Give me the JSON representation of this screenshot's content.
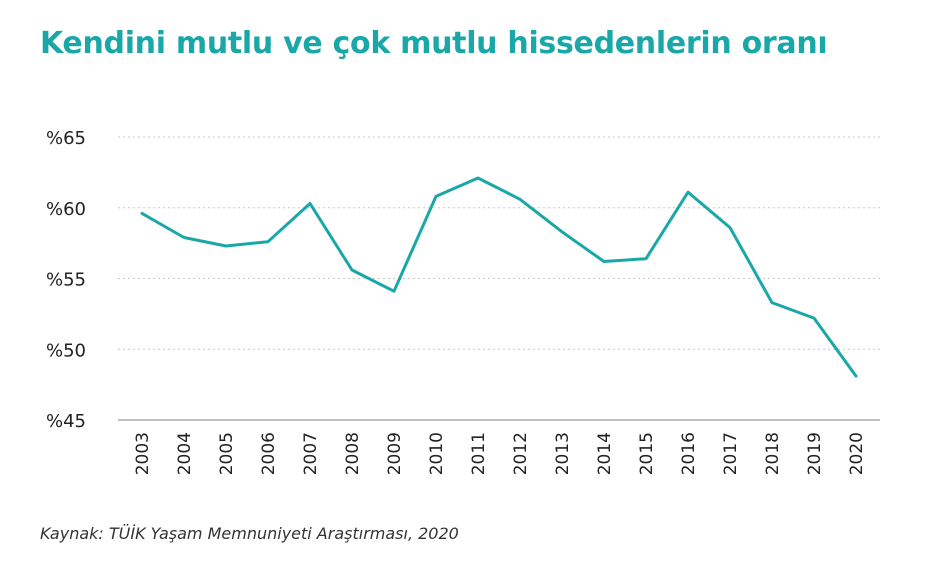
{
  "chart_data": {
    "type": "line",
    "title": "Kendini mutlu ve çok mutlu hissedenlerin oranı",
    "x": [
      "2003",
      "2004",
      "2005",
      "2006",
      "2007",
      "2008",
      "2009",
      "2010",
      "2011",
      "2012",
      "2013",
      "2014",
      "2015",
      "2016",
      "2017",
      "2018",
      "2019",
      "2020"
    ],
    "series": [
      {
        "values": [
          59.6,
          57.9,
          57.3,
          57.6,
          60.3,
          55.6,
          54.1,
          60.8,
          62.1,
          60.6,
          58.3,
          56.2,
          56.4,
          61.1,
          58.6,
          53.3,
          52.2,
          48.1
        ]
      }
    ],
    "yticks": [
      "%65",
      "%60",
      "%55",
      "%50",
      "%45"
    ],
    "ytick_values": [
      65,
      60,
      55,
      50,
      45
    ],
    "ylim": [
      45,
      65
    ],
    "xlabel": "",
    "ylabel": "",
    "grid": true,
    "line_color": "#1aa7a8",
    "grid_color": "#c8c8c8",
    "source": "Kaynak: TÜİK Yaşam Memnuniyeti Araştırması, 2020"
  }
}
